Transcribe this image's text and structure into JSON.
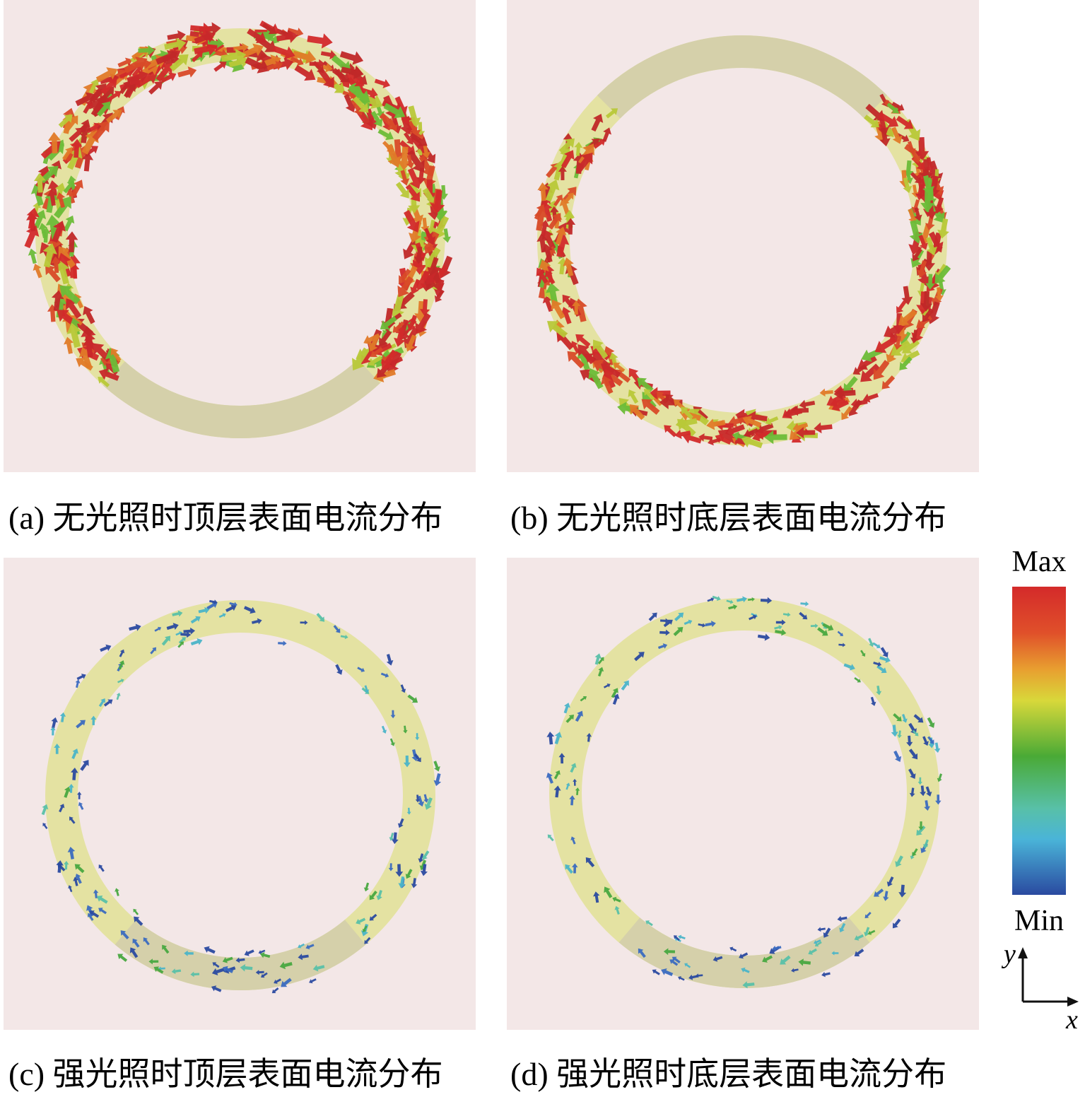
{
  "panels": [
    {
      "caption": "(a) 无光照时顶层表面电流分布"
    },
    {
      "caption": "(b) 无光照时底层表面电流分布"
    },
    {
      "caption": "(c) 强光照时顶层表面电流分布"
    },
    {
      "caption": "(d) 强光照时底层表面电流分布"
    }
  ],
  "colorbar": {
    "max_label": "Max",
    "min_label": "Min"
  },
  "axes": {
    "y_label": "y",
    "x_label": "x"
  }
}
